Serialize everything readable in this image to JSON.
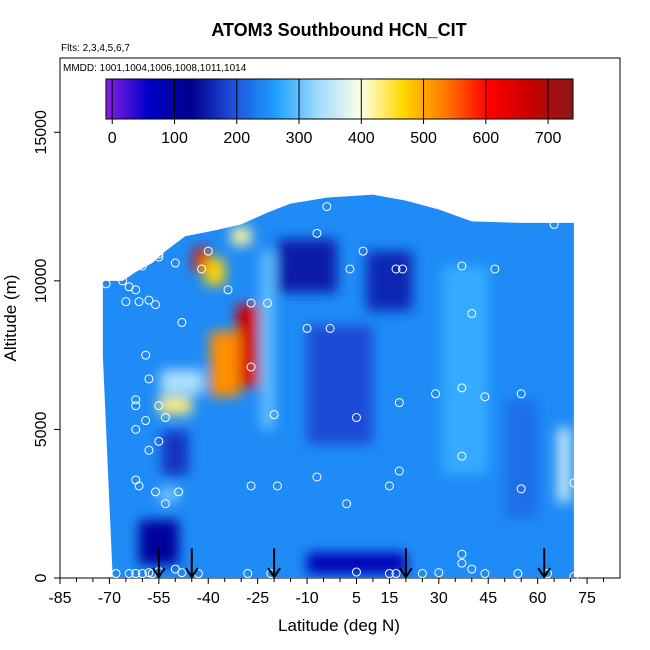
{
  "chart_data": {
    "type": "heatmap",
    "title": "ATOM3 Southbound HCN_CIT",
    "subtitle_lines": [
      "Flts: 2,3,4,5,6,7",
      "MMDD: 1001,1004,1006,1008,1011,1014"
    ],
    "xlabel": "Latitude (deg N)",
    "ylabel": "Altitude (m)",
    "xlim": [
      -85,
      85
    ],
    "ylim": [
      0,
      17500
    ],
    "x_ticks": [
      -85,
      -70,
      -55,
      -40,
      -25,
      -10,
      5,
      15,
      30,
      45,
      60,
      75
    ],
    "y_ticks": [
      0,
      5000,
      10000,
      15000
    ],
    "colorbar": {
      "min": -10,
      "max": 740,
      "ticks": [
        0,
        100,
        200,
        300,
        400,
        500,
        600,
        700
      ],
      "colors": [
        "#8b1ee6",
        "#0000c8",
        "#00008c",
        "#1e50dc",
        "#1ea0ff",
        "#a0dcff",
        "#ffffe6",
        "#ffd700",
        "#ff7800",
        "#ff0000",
        "#c80000",
        "#8b1a1a"
      ]
    },
    "field_extent": [
      [
        -72,
        10000
      ],
      [
        -66,
        10000
      ],
      [
        -62,
        10300
      ],
      [
        -57,
        10600
      ],
      [
        -53,
        11000
      ],
      [
        -47,
        11500
      ],
      [
        -38,
        11700
      ],
      [
        -30,
        11900
      ],
      [
        -22,
        12300
      ],
      [
        -15,
        12600
      ],
      [
        -4,
        12800
      ],
      [
        10,
        12900
      ],
      [
        20,
        12700
      ],
      [
        30,
        12400
      ],
      [
        40,
        12000
      ],
      [
        55,
        11950
      ],
      [
        71,
        11950
      ],
      [
        71,
        0
      ],
      [
        -69,
        0
      ],
      [
        -70,
        2500
      ],
      [
        -71,
        5000
      ],
      [
        -72,
        7500
      ]
    ],
    "field_anomalies": [
      {
        "x": -28,
        "y": 7800,
        "w": 7,
        "h": 2800,
        "value": 660
      },
      {
        "x": -35,
        "y": 7200,
        "w": 9,
        "h": 2200,
        "value": 520
      },
      {
        "x": -42,
        "y": 10700,
        "w": 5,
        "h": 800,
        "value": 640
      },
      {
        "x": -38,
        "y": 10300,
        "w": 6,
        "h": 900,
        "value": 470
      },
      {
        "x": -50,
        "y": 5800,
        "w": 10,
        "h": 600,
        "value": 430
      },
      {
        "x": -48,
        "y": 6600,
        "w": 13,
        "h": 800,
        "value": 340
      },
      {
        "x": -30,
        "y": 11500,
        "w": 6,
        "h": 600,
        "value": 420
      },
      {
        "x": -22,
        "y": 8000,
        "w": 4,
        "h": 6000,
        "value": 300
      },
      {
        "x": 38,
        "y": 7000,
        "w": 14,
        "h": 7000,
        "value": 275
      },
      {
        "x": 68,
        "y": 3800,
        "w": 4,
        "h": 2500,
        "value": 360
      },
      {
        "x": -10,
        "y": 10500,
        "w": 18,
        "h": 1800,
        "value": 150
      },
      {
        "x": 15,
        "y": 10000,
        "w": 14,
        "h": 2000,
        "value": 160
      },
      {
        "x": -55,
        "y": 1200,
        "w": 12,
        "h": 1500,
        "value": 110
      },
      {
        "x": 5,
        "y": 500,
        "w": 30,
        "h": 700,
        "value": 80
      },
      {
        "x": -50,
        "y": 4200,
        "w": 8,
        "h": 1500,
        "value": 170
      },
      {
        "x": -52,
        "y": 2800,
        "w": 6,
        "h": 400,
        "value": 320
      },
      {
        "x": 0,
        "y": 6500,
        "w": 20,
        "h": 4000,
        "value": 190
      },
      {
        "x": 55,
        "y": 4000,
        "w": 10,
        "h": 4000,
        "value": 220
      }
    ],
    "observations": [
      [
        -71,
        9900
      ],
      [
        -66,
        10000
      ],
      [
        -64,
        9800
      ],
      [
        -62,
        9700
      ],
      [
        -65,
        9300
      ],
      [
        -61,
        9300
      ],
      [
        -58,
        9350
      ],
      [
        -56,
        9200
      ],
      [
        -60,
        10500
      ],
      [
        -55,
        10800
      ],
      [
        -48,
        8600
      ],
      [
        -55,
        10900
      ],
      [
        -50,
        10600
      ],
      [
        -42,
        10400
      ],
      [
        -40,
        11000
      ],
      [
        -34,
        9700
      ],
      [
        -27,
        9250
      ],
      [
        -22,
        9250
      ],
      [
        -27,
        7100
      ],
      [
        -10,
        8400
      ],
      [
        -3,
        8400
      ],
      [
        -7,
        11600
      ],
      [
        -4,
        12500
      ],
      [
        3,
        10400
      ],
      [
        7,
        11000
      ],
      [
        17,
        10400
      ],
      [
        19,
        10400
      ],
      [
        33,
        12500
      ],
      [
        37,
        10500
      ],
      [
        47,
        10400
      ],
      [
        65,
        11900
      ],
      [
        -59,
        7500
      ],
      [
        -58,
        6700
      ],
      [
        -62,
        6000
      ],
      [
        -62,
        5800
      ],
      [
        -55,
        5800
      ],
      [
        -53,
        5400
      ],
      [
        -59,
        5300
      ],
      [
        -62,
        5000
      ],
      [
        -55,
        4600
      ],
      [
        -58,
        4300
      ],
      [
        -20,
        5500
      ],
      [
        5,
        5400
      ],
      [
        18,
        5900
      ],
      [
        29,
        6200
      ],
      [
        37,
        6400
      ],
      [
        44,
        6100
      ],
      [
        55,
        6200
      ],
      [
        40,
        8900
      ],
      [
        -62,
        3300
      ],
      [
        -61,
        3100
      ],
      [
        -56,
        2900
      ],
      [
        -49,
        2900
      ],
      [
        -53,
        2500
      ],
      [
        -27,
        3100
      ],
      [
        -19,
        3100
      ],
      [
        -7,
        3400
      ],
      [
        2,
        2500
      ],
      [
        15,
        3100
      ],
      [
        18,
        3600
      ],
      [
        37,
        4100
      ],
      [
        55,
        3000
      ],
      [
        71,
        3200
      ],
      [
        -68,
        150
      ],
      [
        -64,
        150
      ],
      [
        -62,
        150
      ],
      [
        -60,
        150
      ],
      [
        -58,
        180
      ],
      [
        -57,
        150
      ],
      [
        -55,
        220
      ],
      [
        -50,
        300
      ],
      [
        -48,
        180
      ],
      [
        -43,
        150
      ],
      [
        -28,
        150
      ],
      [
        -21,
        150
      ],
      [
        5,
        200
      ],
      [
        15,
        150
      ],
      [
        17,
        150
      ],
      [
        25,
        150
      ],
      [
        30,
        180
      ],
      [
        37,
        800
      ],
      [
        37,
        500
      ],
      [
        40,
        300
      ],
      [
        44,
        150
      ],
      [
        54,
        150
      ],
      [
        63,
        150
      ],
      [
        71,
        50
      ]
    ],
    "flight_arrows": [
      -55,
      -45,
      -20,
      20,
      62
    ]
  }
}
